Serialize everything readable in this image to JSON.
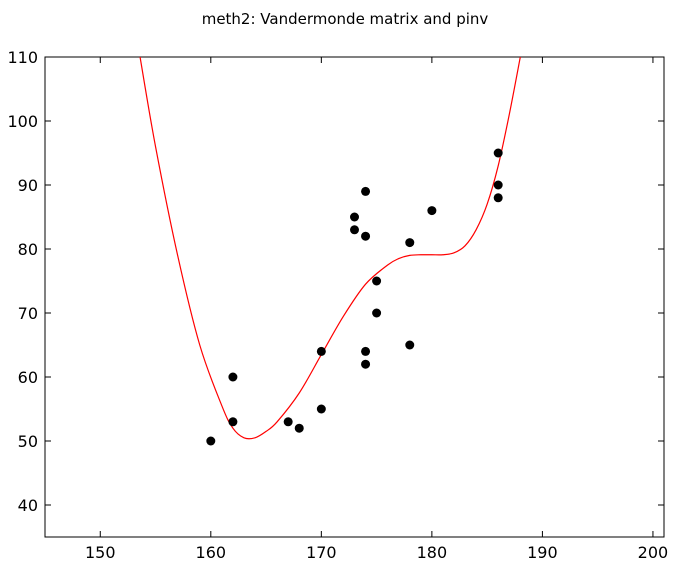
{
  "chart_data": {
    "type": "scatter",
    "title": "meth2: Vandermonde matrix and pinv",
    "xlabel": "",
    "ylabel": "",
    "xlim": [
      145,
      201
    ],
    "ylim": [
      35,
      110
    ],
    "xticks": [
      150,
      160,
      170,
      180,
      190,
      200
    ],
    "yticks": [
      40,
      50,
      60,
      70,
      80,
      90,
      100,
      110
    ],
    "grid": false,
    "series": [
      {
        "type": "scatter",
        "color": "#000000",
        "marker": "circle",
        "x": [
          160,
          162,
          162,
          167,
          168,
          170,
          170,
          173,
          173,
          174,
          174,
          174,
          174,
          175,
          175,
          178,
          178,
          180,
          186,
          186,
          186
        ],
        "y": [
          50,
          53,
          60,
          53,
          52,
          55,
          64,
          85,
          83,
          89,
          82,
          64,
          62,
          75,
          70,
          81,
          65,
          86,
          95,
          90,
          88
        ]
      },
      {
        "type": "line",
        "color": "#ff0000",
        "x": [
          153.6,
          155,
          157,
          159,
          161,
          162,
          163,
          164,
          165,
          166,
          168,
          170,
          172,
          174,
          176,
          177,
          178,
          179,
          180,
          181,
          182,
          183,
          184,
          185,
          186,
          187,
          188
        ],
        "y": [
          110,
          96,
          79,
          65,
          55.5,
          52,
          50.5,
          50.5,
          51.5,
          53,
          57.5,
          63.5,
          69.5,
          74.5,
          77.5,
          78.5,
          79,
          79.1,
          79.1,
          79.1,
          79.4,
          80.5,
          83,
          87,
          93,
          101,
          110
        ]
      }
    ]
  }
}
